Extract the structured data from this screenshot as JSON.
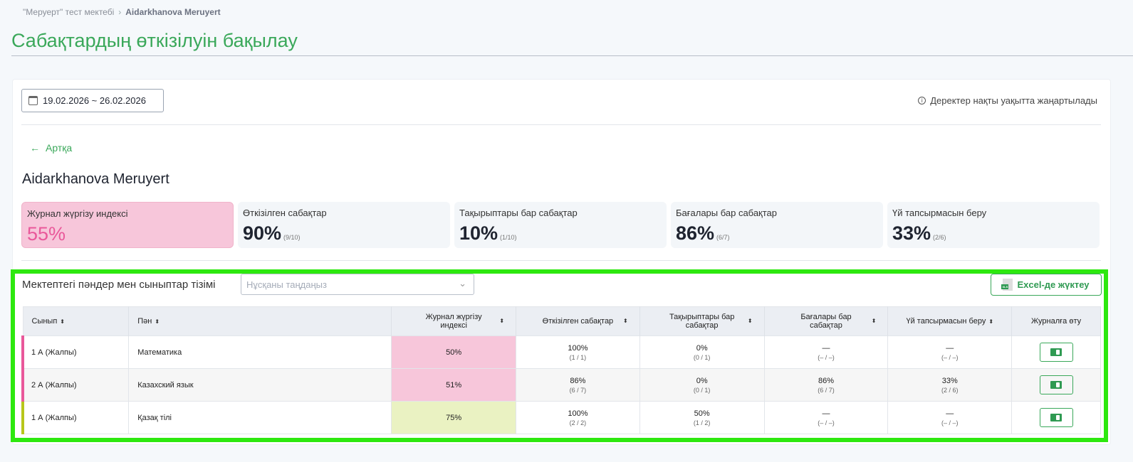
{
  "breadcrumb": {
    "parent": "\"Меруерт\" тест мектебі",
    "current": "Aidarkhanova Meruyert"
  },
  "page_title": "Сабақтардың өткізілуін бақылау",
  "date_range": "19.02.2026 ~ 26.02.2026",
  "info_text": "Деректер нақты уақытта жаңартылады",
  "back_label": "Артқа",
  "teacher_name": "Aidarkhanova Meruyert",
  "stats": [
    {
      "label": "Журнал жүргізу индексі",
      "value": "55%",
      "detail": ""
    },
    {
      "label": "Өткізілген сабақтар",
      "value": "90%",
      "detail": "(9/10)"
    },
    {
      "label": "Тақырыптары бар сабақтар",
      "value": "10%",
      "detail": "(1/10)"
    },
    {
      "label": "Бағалары бар сабақтар",
      "value": "86%",
      "detail": "(6/7)"
    },
    {
      "label": "Үй тапсырмасын беру",
      "value": "33%",
      "detail": "(2/6)"
    }
  ],
  "list_title": "Мектептегі пәндер мен сыныптар тізімі",
  "select_placeholder": "Нұсқаны таңдаңыз",
  "excel_label": "Excel-де жүктеу",
  "colors": {
    "accent": "#3aa85a",
    "pink": "#f7c6da",
    "lime": "#eaf2c2"
  },
  "table": {
    "headers": [
      "Сынып",
      "Пән",
      "Журнал жүргізу индексі",
      "Өткізілген сабақтар",
      "Тақырыптары бар сабақтар",
      "Бағалары бар сабақтар",
      "Үй тапсырмасын беру",
      "Журналға өту"
    ],
    "rows": [
      {
        "class": "1 А (Жалпы)",
        "subject": "Математика",
        "index": "50%",
        "conducted": "100%",
        "conducted_d": "(1 / 1)",
        "topics": "0%",
        "topics_d": "(0 / 1)",
        "grades": "—",
        "grades_d": "(– / –)",
        "homework": "—",
        "homework_d": "(– / –)"
      },
      {
        "class": "2 А (Жалпы)",
        "subject": "Казахский язык",
        "index": "51%",
        "conducted": "86%",
        "conducted_d": "(6 / 7)",
        "topics": "0%",
        "topics_d": "(0 / 1)",
        "grades": "86%",
        "grades_d": "(6 / 7)",
        "homework": "33%",
        "homework_d": "(2 / 6)"
      },
      {
        "class": "1 А (Жалпы)",
        "subject": "Қазақ тілі",
        "index": "75%",
        "conducted": "100%",
        "conducted_d": "(2 / 2)",
        "topics": "50%",
        "topics_d": "(1 / 2)",
        "grades": "—",
        "grades_d": "(– / –)",
        "homework": "—",
        "homework_d": "(– / –)"
      }
    ]
  }
}
